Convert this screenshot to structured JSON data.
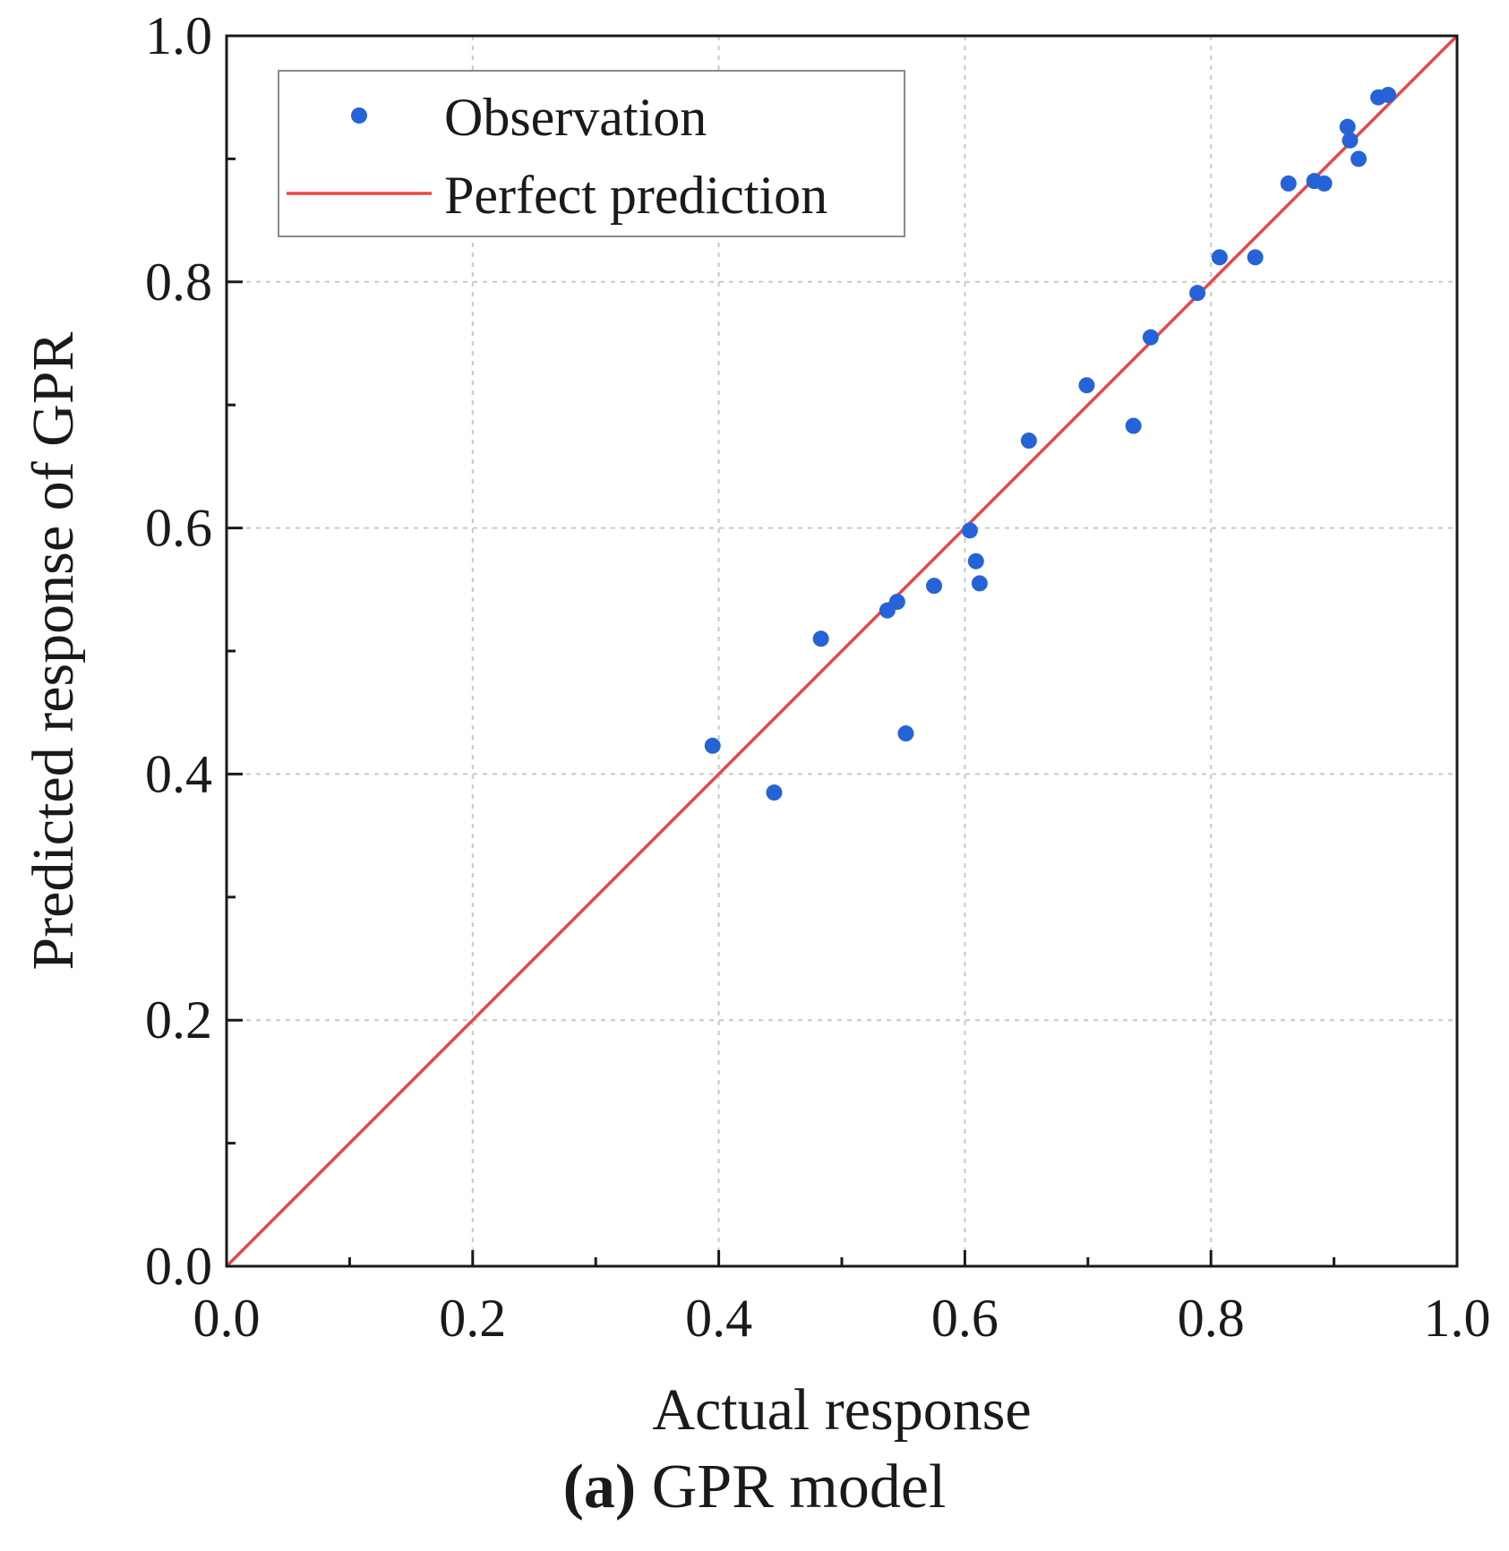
{
  "chart_data": {
    "type": "scatter",
    "xlabel": "Actual response",
    "ylabel": "Predicted response of GPR",
    "xlim": [
      0.0,
      1.0
    ],
    "ylim": [
      0.0,
      1.0
    ],
    "x_ticks": [
      "0.0",
      "0.2",
      "0.4",
      "0.6",
      "0.8",
      "1.0"
    ],
    "y_ticks": [
      "0.0",
      "0.2",
      "0.4",
      "0.6",
      "0.8",
      "1.0"
    ],
    "grid": true,
    "legend_position": "top-left",
    "series": [
      {
        "name": "Observation",
        "kind": "scatter",
        "color": "#2563d6",
        "points": [
          [
            0.395,
            0.423
          ],
          [
            0.445,
            0.385
          ],
          [
            0.483,
            0.51
          ],
          [
            0.537,
            0.533
          ],
          [
            0.545,
            0.54
          ],
          [
            0.552,
            0.433
          ],
          [
            0.575,
            0.553
          ],
          [
            0.604,
            0.598
          ],
          [
            0.609,
            0.573
          ],
          [
            0.612,
            0.555
          ],
          [
            0.652,
            0.671
          ],
          [
            0.699,
            0.716
          ],
          [
            0.737,
            0.683
          ],
          [
            0.751,
            0.755
          ],
          [
            0.789,
            0.791
          ],
          [
            0.807,
            0.82
          ],
          [
            0.836,
            0.82
          ],
          [
            0.863,
            0.88
          ],
          [
            0.884,
            0.882
          ],
          [
            0.892,
            0.88
          ],
          [
            0.911,
            0.926
          ],
          [
            0.913,
            0.915
          ],
          [
            0.92,
            0.9
          ],
          [
            0.936,
            0.95
          ],
          [
            0.944,
            0.952
          ]
        ]
      },
      {
        "name": "Perfect prediction",
        "kind": "line",
        "color": "#e8474a",
        "x": [
          0.0,
          1.0
        ],
        "y": [
          0.0,
          1.0
        ]
      }
    ]
  },
  "caption": {
    "label": "(a)",
    "text": " GPR model"
  }
}
